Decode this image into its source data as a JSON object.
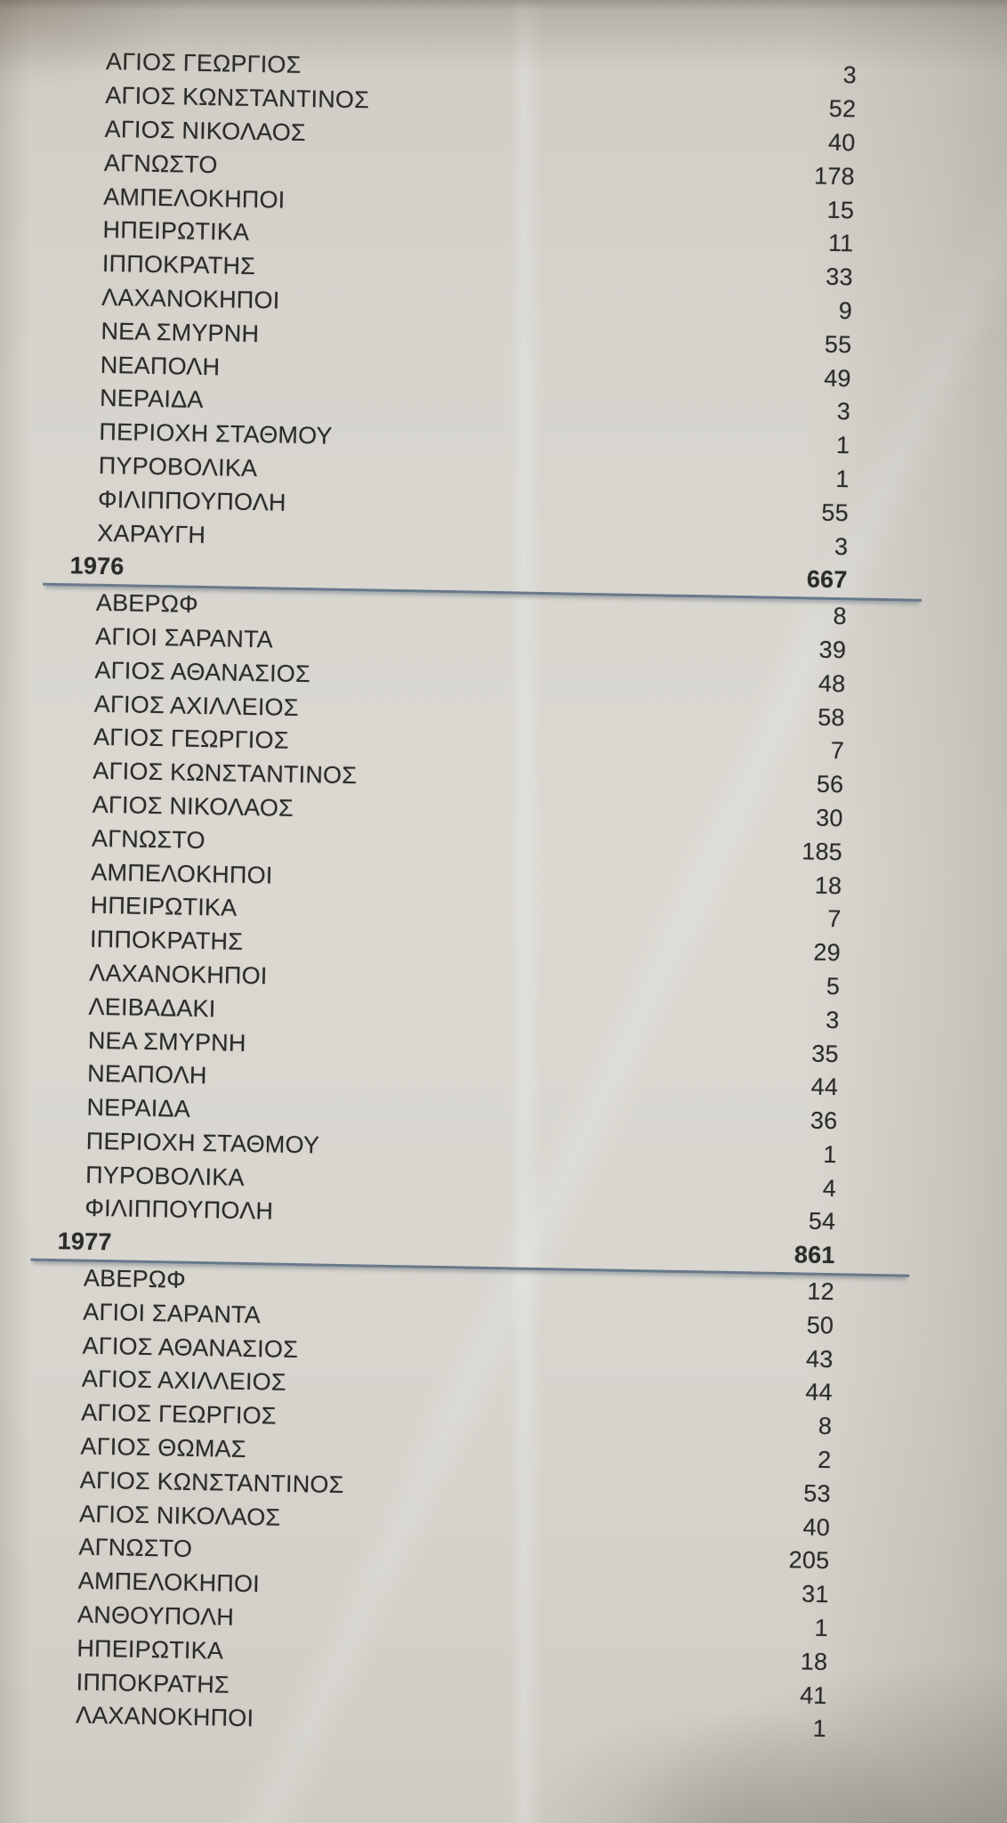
{
  "report": {
    "description": "Photographed printed page listing Greek neighborhood names with counts, grouped by year with bold year totals",
    "text_color": "#2b2b27",
    "rule_color": "#68798b",
    "paper_color": "#d3d1ca",
    "sections": [
      {
        "year": "",
        "total": "",
        "entries": [
          {
            "name": "ΑΓΙΟΣ ΓΕΩΡΓΙΟΣ",
            "count": "3"
          },
          {
            "name": "ΑΓΙΟΣ ΚΩΝΣΤΑΝΤΙΝΟΣ",
            "count": "52"
          },
          {
            "name": "ΑΓΙΟΣ ΝΙΚΟΛΑΟΣ",
            "count": "40"
          },
          {
            "name": "ΑΓΝΩΣΤΟ",
            "count": "178"
          },
          {
            "name": "ΑΜΠΕΛΟΚΗΠΟΙ",
            "count": "15"
          },
          {
            "name": "ΗΠΕΙΡΩΤΙΚΑ",
            "count": "11"
          },
          {
            "name": "ΙΠΠΟΚΡΑΤΗΣ",
            "count": "33"
          },
          {
            "name": "ΛΑΧΑΝΟΚΗΠΟΙ",
            "count": "9"
          },
          {
            "name": "ΝΕΑ ΣΜΥΡΝΗ",
            "count": "55"
          },
          {
            "name": "ΝΕΑΠΟΛΗ",
            "count": "49"
          },
          {
            "name": "ΝΕΡΑΙΔΑ",
            "count": "3"
          },
          {
            "name": "ΠΕΡΙΟΧΗ ΣΤΑΘΜΟΥ",
            "count": "1"
          },
          {
            "name": "ΠΥΡΟΒΟΛΙΚΑ",
            "count": "1"
          },
          {
            "name": "ΦΙΛΙΠΠΟΥΠΟΛΗ",
            "count": "55"
          },
          {
            "name": "ΧΑΡΑΥΓΗ",
            "count": "3"
          }
        ]
      },
      {
        "year": "1976",
        "total": "667",
        "entries": [
          {
            "name": "ΑΒΕΡΩΦ",
            "count": "8"
          },
          {
            "name": "ΑΓΙΟΙ ΣΑΡΑΝΤΑ",
            "count": "39"
          },
          {
            "name": "ΑΓΙΟΣ ΑΘΑΝΑΣΙΟΣ",
            "count": "48"
          },
          {
            "name": "ΑΓΙΟΣ ΑΧΙΛΛΕΙΟΣ",
            "count": "58"
          },
          {
            "name": "ΑΓΙΟΣ ΓΕΩΡΓΙΟΣ",
            "count": "7"
          },
          {
            "name": "ΑΓΙΟΣ ΚΩΝΣΤΑΝΤΙΝΟΣ",
            "count": "56"
          },
          {
            "name": "ΑΓΙΟΣ ΝΙΚΟΛΑΟΣ",
            "count": "30"
          },
          {
            "name": "ΑΓΝΩΣΤΟ",
            "count": "185"
          },
          {
            "name": "ΑΜΠΕΛΟΚΗΠΟΙ",
            "count": "18"
          },
          {
            "name": "ΗΠΕΙΡΩΤΙΚΑ",
            "count": "7"
          },
          {
            "name": "ΙΠΠΟΚΡΑΤΗΣ",
            "count": "29"
          },
          {
            "name": "ΛΑΧΑΝΟΚΗΠΟΙ",
            "count": "5"
          },
          {
            "name": "ΛΕΙΒΑΔΑΚΙ",
            "count": "3"
          },
          {
            "name": "ΝΕΑ ΣΜΥΡΝΗ",
            "count": "35"
          },
          {
            "name": "ΝΕΑΠΟΛΗ",
            "count": "44"
          },
          {
            "name": "ΝΕΡΑΙΔΑ",
            "count": "36"
          },
          {
            "name": "ΠΕΡΙΟΧΗ ΣΤΑΘΜΟΥ",
            "count": "1"
          },
          {
            "name": "ΠΥΡΟΒΟΛΙΚΑ",
            "count": "4"
          },
          {
            "name": "ΦΙΛΙΠΠΟΥΠΟΛΗ",
            "count": "54"
          }
        ]
      },
      {
        "year": "1977",
        "total": "861",
        "entries": [
          {
            "name": "ΑΒΕΡΩΦ",
            "count": "12"
          },
          {
            "name": "ΑΓΙΟΙ ΣΑΡΑΝΤΑ",
            "count": "50"
          },
          {
            "name": "ΑΓΙΟΣ ΑΘΑΝΑΣΙΟΣ",
            "count": "43"
          },
          {
            "name": "ΑΓΙΟΣ ΑΧΙΛΛΕΙΟΣ",
            "count": "44"
          },
          {
            "name": "ΑΓΙΟΣ ΓΕΩΡΓΙΟΣ",
            "count": "8"
          },
          {
            "name": "ΑΓΙΟΣ ΘΩΜΑΣ",
            "count": "2"
          },
          {
            "name": "ΑΓΙΟΣ ΚΩΝΣΤΑΝΤΙΝΟΣ",
            "count": "53"
          },
          {
            "name": "ΑΓΙΟΣ ΝΙΚΟΛΑΟΣ",
            "count": "40"
          },
          {
            "name": "ΑΓΝΩΣΤΟ",
            "count": "205"
          },
          {
            "name": "ΑΜΠΕΛΟΚΗΠΟΙ",
            "count": "31"
          },
          {
            "name": "ΑΝΘΟΥΠΟΛΗ",
            "count": "1"
          },
          {
            "name": "ΗΠΕΙΡΩΤΙΚΑ",
            "count": "18"
          },
          {
            "name": "ΙΠΠΟΚΡΑΤΗΣ",
            "count": "41"
          },
          {
            "name": "ΛΑΧΑΝΟΚΗΠΟΙ",
            "count": "1"
          }
        ]
      }
    ]
  }
}
